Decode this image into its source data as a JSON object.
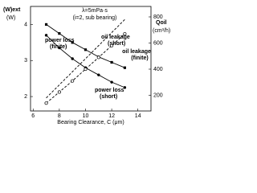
{
  "chart_data": {
    "type": "line",
    "annotations": [
      "λ=5mPa·s",
      "(i=2, sub bearing)",
      "power loss",
      "(finite)",
      "oil leakage",
      "(short)",
      "oil leakage",
      "(finite)",
      "power loss",
      "(short)"
    ],
    "ylabel": "(W)ext",
    "yunit": "(W)",
    "y2label": "Qoil",
    "y2unit": "(cm³/h)",
    "xlabel": "Bearing Clearance, C (μm)",
    "x": [
      7,
      8,
      9,
      10,
      11,
      12,
      13
    ],
    "series": [
      {
        "name": "power loss (finite)",
        "color": "#000000",
        "marker": "square",
        "dash": false,
        "values": [
          4.0,
          3.75,
          3.5,
          3.3,
          3.1,
          2.95,
          2.8
        ]
      },
      {
        "name": "power loss (short)",
        "color": "#000000",
        "marker": "dot",
        "dash": false,
        "values": [
          3.7,
          3.35,
          3.05,
          2.8,
          2.6,
          2.4,
          2.25
        ]
      },
      {
        "name": "oil leakage (short)",
        "color": "#000000",
        "marker": "none",
        "dash": true,
        "axis": "y2",
        "values": [
          180,
          280,
          380,
          480,
          580,
          680,
          780
        ]
      },
      {
        "name": "oil leakage (finite)",
        "color": "#000000",
        "marker": "circle",
        "dash": true,
        "axis": "y2",
        "values": [
          140,
          225,
          310,
          400,
          490,
          580,
          670
        ]
      }
    ],
    "xlim": [
      5.8,
      15
    ],
    "xticks": [
      6,
      8,
      10,
      12,
      14
    ],
    "ylim": [
      1.6,
      4.5
    ],
    "yticks": [
      2,
      3,
      4
    ],
    "y2lim": [
      80,
      880
    ],
    "y2ticks": [
      200,
      400,
      600,
      800
    ]
  }
}
